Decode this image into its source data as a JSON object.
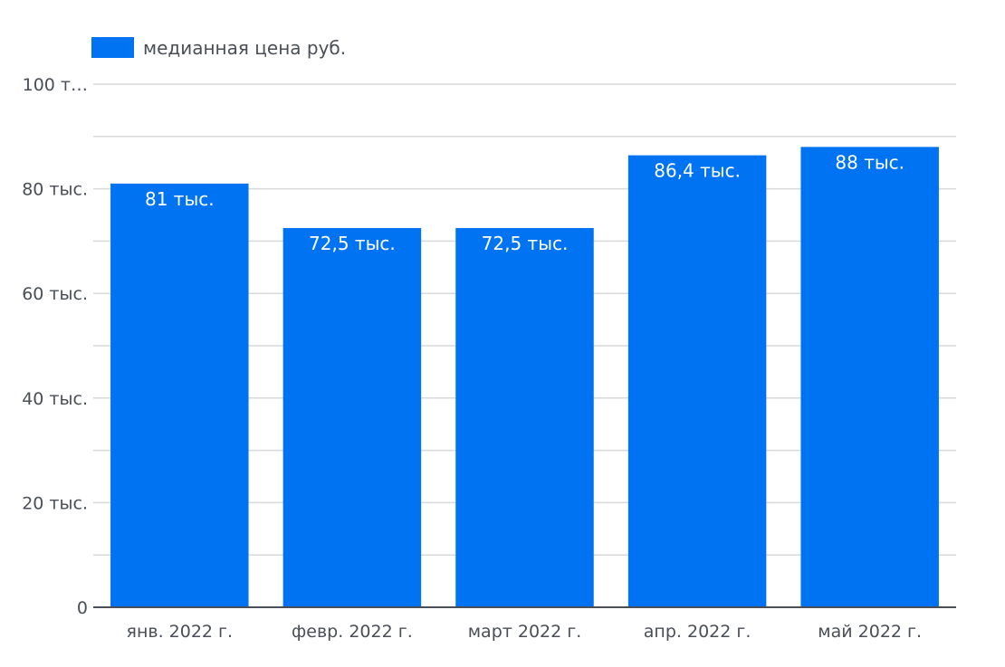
{
  "chart_data": {
    "type": "bar",
    "title": "",
    "xlabel": "",
    "ylabel": "",
    "categories": [
      "янв. 2022 г.",
      "февр. 2022 г.",
      "март 2022 г.",
      "апр. 2022 г.",
      "май 2022 г."
    ],
    "series": [
      {
        "name": "медианная цена руб.",
        "values": [
          81000,
          72500,
          72500,
          86400,
          88000
        ],
        "labels": [
          "81 тыс.",
          "72,5 тыс.",
          "72,5 тыс.",
          "86,4 тыс.",
          "88 тыс."
        ],
        "color": "#0073f2"
      }
    ],
    "ylim": [
      0,
      100000
    ],
    "yticks": [
      {
        "value": 0,
        "label": "0"
      },
      {
        "value": 20000,
        "label": "20 тыс."
      },
      {
        "value": 40000,
        "label": "40 тыс."
      },
      {
        "value": 60000,
        "label": "60 тыс."
      },
      {
        "value": 80000,
        "label": "80 тыс."
      },
      {
        "value": 100000,
        "label": "100 т…"
      }
    ],
    "minor_gridlines": [
      10000,
      30000,
      50000,
      70000,
      90000
    ],
    "grid": true,
    "legend_position": "top-left"
  },
  "colors": {
    "bar": "#0073f2",
    "grid": "#d9d9d9",
    "axis": "#4a4f57",
    "text": "#4a4f57",
    "bar_label": "#ffffff"
  }
}
